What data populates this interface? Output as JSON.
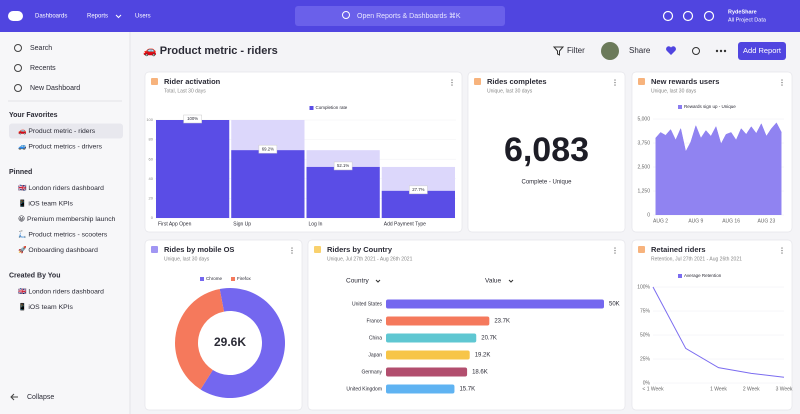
{
  "nav": {
    "links": [
      "Dashboards",
      "Reports",
      "Users"
    ],
    "search": "Open Reports & Dashboards ⌘K",
    "org": "RydeShare",
    "project": "All Project Data"
  },
  "sidebar": {
    "actions": [
      "Search",
      "Recents",
      "New Dashboard"
    ],
    "sections": [
      {
        "title": "Your Favorites",
        "items": [
          "🚗 Product metric - riders",
          "🚙 Product metrics - drivers"
        ]
      },
      {
        "title": "Pinned",
        "items": [
          "🇬🇧 London riders dashboard",
          "📱 iOS team KPIs",
          "😀 Premium membership launch",
          "🛴 Product metrics - scooters",
          "🚀 Onboarding dashboard"
        ]
      },
      {
        "title": "Created By You",
        "items": [
          "🇬🇧 London riders dashboard",
          "📱 iOS team KPIs"
        ]
      }
    ],
    "collapse": "Collapse"
  },
  "header": {
    "title": "🚗 Product metric - riders",
    "buttons": [
      "Filter",
      "Share",
      "Add Report"
    ]
  },
  "chart_data": [
    {
      "type": "bar",
      "title": "Rider activation",
      "subtitle": "Total, Last 30 days",
      "categories": [
        "First App Open",
        "Sign Up",
        "Log In",
        "Add Payment Type"
      ],
      "series": [
        {
          "name": "Completion rate",
          "color": "#5a4de6",
          "values": [
            100,
            69.2,
            52.1,
            27.7
          ],
          "value_labels": [
            "100%",
            "69.2%",
            "52.1%",
            "27.7%"
          ]
        }
      ],
      "ylim": [
        0,
        100
      ],
      "yticks": [
        0,
        20,
        40,
        60,
        80,
        100
      ]
    },
    {
      "type": "number",
      "title": "Rides completes",
      "subtitle": "Unique, last 30 days",
      "values": [
        6083
      ],
      "value_labels": [
        "6,083"
      ],
      "caption": "Complete - Unique"
    },
    {
      "type": "area",
      "title": "New rewards users",
      "subtitle": "Unique, last 30 days",
      "categories": [
        null,
        "AUG 2",
        null,
        null,
        null,
        null,
        null,
        null,
        "AUG 9",
        null,
        null,
        null,
        null,
        null,
        null,
        "AUG 16",
        null,
        null,
        null,
        null,
        null,
        null,
        "AUG 23",
        null,
        null,
        null
      ],
      "series": [
        {
          "name": "Rewards sign up - Unique",
          "color": "#8a7cf0",
          "values": [
            4000,
            4300,
            4150,
            4450,
            3900,
            4500,
            3300,
            3800,
            4650,
            4000,
            4400,
            4100,
            4600,
            3700,
            4200,
            4300,
            3900,
            4500,
            4200,
            4600,
            4250,
            4750,
            4100,
            4500,
            4800,
            4300
          ]
        }
      ],
      "ylim": [
        0,
        5000
      ],
      "yticks": [
        0,
        {
          "value": 1250,
          "label": "1,250"
        },
        {
          "value": 2500,
          "label": "2,500"
        },
        {
          "value": 3750,
          "label": "3,750"
        },
        {
          "value": 5000,
          "label": "5,000"
        }
      ]
    },
    {
      "type": "pie",
      "title": "Rides by mobile OS",
      "subtitle": "Unique, last 30 days",
      "categories": [
        "Chrome",
        "Firefox"
      ],
      "values": [
        62,
        38
      ],
      "colors": [
        "#7467ef",
        "#f5795c"
      ],
      "center_label": "29.6K"
    },
    {
      "type": "hbar",
      "title": "Riders by Country",
      "subtitle": "Unique, Jul 27th 2021 - Aug 26th 2021",
      "columns": [
        "Country",
        "Value"
      ],
      "categories": [
        "United States",
        "France",
        "China",
        "Japan",
        "Germany",
        "United Kingdom"
      ],
      "values": [
        50000,
        23700,
        20700,
        19200,
        18600,
        15700
      ],
      "value_labels": [
        "50K",
        "23.7K",
        "20.7K",
        "19.2K",
        "18.6K",
        "15.7K"
      ],
      "colors": [
        "#7467ef",
        "#f5795c",
        "#5fc7d2",
        "#f7c548",
        "#b24e6e",
        "#5fb3f2"
      ]
    },
    {
      "type": "line",
      "title": "Retained riders",
      "subtitle": "Retention, Jul 27th 2021 - Aug 26th 2021",
      "categories": [
        "< 1 Week",
        null,
        "1 Week",
        "2 Week",
        "3 Week"
      ],
      "series": [
        {
          "name": "Average Retention",
          "color": "#7b6cf0",
          "values": [
            100,
            36,
            16,
            10,
            6
          ]
        }
      ],
      "ylim": [
        0,
        100
      ],
      "yticks": [
        {
          "value": 0,
          "label": "0%"
        },
        {
          "value": 25,
          "label": "25%"
        },
        {
          "value": 50,
          "label": "50%"
        },
        {
          "value": 75,
          "label": "75%"
        },
        {
          "value": 100,
          "label": "100%"
        }
      ]
    }
  ]
}
